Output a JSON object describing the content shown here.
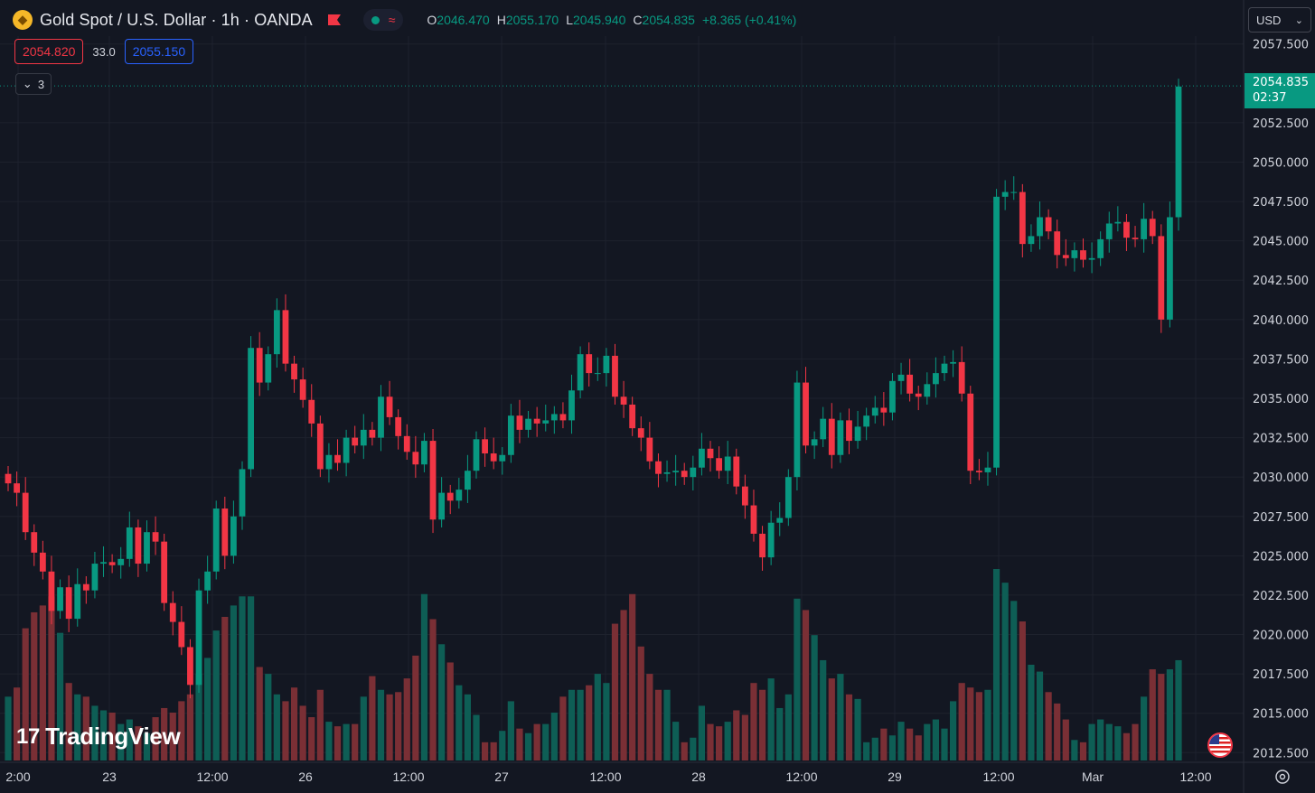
{
  "header": {
    "title": "Gold Spot / U.S. Dollar · 1h · OANDA",
    "ohlc": [
      {
        "label": "O",
        "value": "2046.470"
      },
      {
        "label": "H",
        "value": "2055.170"
      },
      {
        "label": "L",
        "value": "2045.940"
      },
      {
        "label": "C",
        "value": "2054.835"
      }
    ],
    "change": "+8.365 (+0.41%)"
  },
  "quote": {
    "bid": "2054.820",
    "spread": "33.0",
    "ask": "2055.150"
  },
  "collapse_count": "3",
  "currency": "USD",
  "last_price": {
    "price": "2054.835",
    "countdown": "02:37"
  },
  "watermark": "TradingView",
  "colors": {
    "bg": "#131722",
    "up": "#089981",
    "down": "#f23645",
    "grid": "#1e222d",
    "text": "#d1d4dc"
  },
  "chart_data": {
    "type": "candlestick",
    "y_ticks": [
      "2012.500",
      "2015.000",
      "2017.500",
      "2020.000",
      "2022.500",
      "2025.000",
      "2027.500",
      "2030.000",
      "2032.500",
      "2035.000",
      "2037.500",
      "2040.000",
      "2042.500",
      "2045.000",
      "2047.500",
      "2050.000",
      "2052.500",
      "2057.500"
    ],
    "x_ticks": [
      "2:00",
      "23",
      "12:00",
      "26",
      "12:00",
      "27",
      "12:00",
      "28",
      "12:00",
      "29",
      "12:00",
      "Mar",
      "12:00"
    ],
    "ylim": [
      2012.0,
      2058.0
    ],
    "last_price": 2054.835,
    "closes": [
      2029.6,
      2029.0,
      2026.5,
      2025.2,
      2024.0,
      2021.5,
      2023.0,
      2021.0,
      2023.2,
      2022.8,
      2024.5,
      2024.6,
      2024.4,
      2024.8,
      2026.8,
      2024.5,
      2026.5,
      2025.9,
      2022.0,
      2020.8,
      2019.2,
      2016.8,
      2022.8,
      2024.0,
      2028.0,
      2025.0,
      2027.5,
      2030.5,
      2038.2,
      2036.0,
      2037.8,
      2040.6,
      2037.2,
      2036.2,
      2034.9,
      2033.4,
      2030.5,
      2031.4,
      2030.9,
      2032.5,
      2032.0,
      2033.0,
      2032.5,
      2035.1,
      2033.8,
      2032.6,
      2031.6,
      2030.8,
      2032.3,
      2027.3,
      2029.0,
      2028.5,
      2029.2,
      2030.4,
      2032.4,
      2031.5,
      2031.0,
      2031.4,
      2033.9,
      2033.0,
      2033.7,
      2033.4,
      2033.6,
      2034.0,
      2033.6,
      2035.5,
      2037.8,
      2036.6,
      2036.6,
      2037.7,
      2035.1,
      2034.6,
      2033.1,
      2032.5,
      2031.0,
      2030.2,
      2030.3,
      2030.4,
      2030.0,
      2030.6,
      2031.8,
      2031.2,
      2030.4,
      2031.3,
      2029.4,
      2028.2,
      2026.4,
      2024.9,
      2027.1,
      2027.4,
      2030.0,
      2036.0,
      2032.0,
      2032.4,
      2033.7,
      2031.4,
      2033.6,
      2032.3,
      2033.2,
      2033.9,
      2034.4,
      2034.1,
      2036.1,
      2036.5,
      2035.3,
      2035.1,
      2035.9,
      2036.6,
      2037.2,
      2037.3,
      2035.3,
      2030.4,
      2030.3,
      2030.6,
      2047.8,
      2048.1,
      2048.1,
      2044.8,
      2045.3,
      2046.5,
      2045.6,
      2044.1,
      2043.9,
      2044.4,
      2043.8,
      2043.9,
      2045.1,
      2046.1,
      2046.2,
      2045.2,
      2045.1,
      2046.4,
      2045.3,
      2040.0,
      2046.5,
      2054.8
    ],
    "volumes": [
      0.28,
      0.32,
      0.58,
      0.65,
      0.68,
      0.72,
      0.56,
      0.34,
      0.29,
      0.28,
      0.24,
      0.22,
      0.21,
      0.16,
      0.18,
      0.15,
      0.12,
      0.19,
      0.23,
      0.21,
      0.26,
      0.29,
      0.38,
      0.45,
      0.57,
      0.63,
      0.68,
      0.72,
      0.72,
      0.41,
      0.38,
      0.29,
      0.26,
      0.32,
      0.24,
      0.19,
      0.31,
      0.17,
      0.15,
      0.16,
      0.16,
      0.28,
      0.37,
      0.31,
      0.29,
      0.3,
      0.36,
      0.46,
      0.73,
      0.62,
      0.51,
      0.43,
      0.33,
      0.29,
      0.2,
      0.08,
      0.08,
      0.13,
      0.26,
      0.14,
      0.12,
      0.16,
      0.16,
      0.21,
      0.28,
      0.31,
      0.31,
      0.33,
      0.38,
      0.34,
      0.6,
      0.66,
      0.73,
      0.5,
      0.38,
      0.31,
      0.31,
      0.17,
      0.08,
      0.1,
      0.24,
      0.16,
      0.15,
      0.17,
      0.22,
      0.2,
      0.34,
      0.31,
      0.36,
      0.23,
      0.29,
      0.71,
      0.66,
      0.55,
      0.44,
      0.36,
      0.38,
      0.29,
      0.27,
      0.08,
      0.1,
      0.14,
      0.11,
      0.17,
      0.14,
      0.11,
      0.16,
      0.18,
      0.14,
      0.26,
      0.34,
      0.32,
      0.3,
      0.31,
      0.84,
      0.78,
      0.7,
      0.61,
      0.42,
      0.39,
      0.3,
      0.25,
      0.18,
      0.09,
      0.08,
      0.16,
      0.18,
      0.16,
      0.15,
      0.12,
      0.16,
      0.28,
      0.4,
      0.38,
      0.4,
      0.44
    ]
  }
}
